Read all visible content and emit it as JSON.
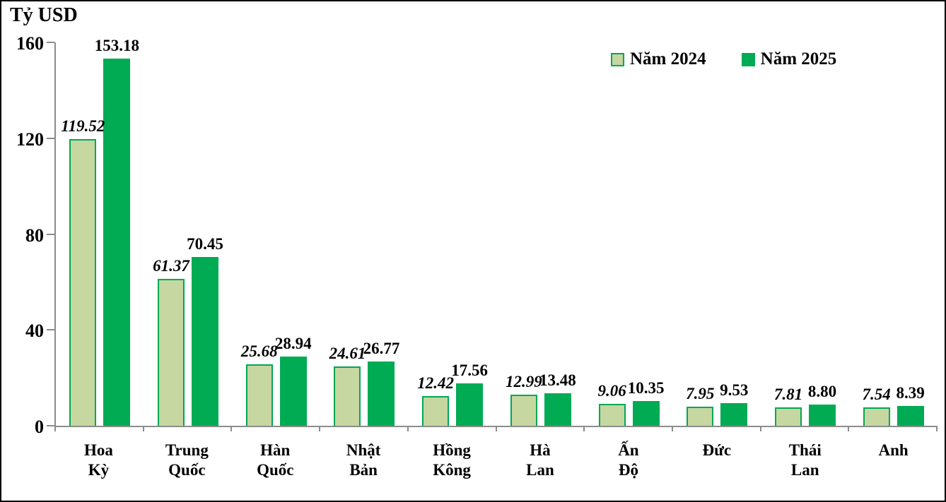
{
  "colors": {
    "axis": "#8c8c8c",
    "frame_border": "#000000",
    "background": "#ffffff",
    "text": "#000000",
    "series_2024_fill": "#c6d7a2",
    "series_2024_border": "#00a854",
    "series_2025_fill": "#00ab54"
  },
  "chart_data": {
    "type": "bar",
    "title": "",
    "ylabel": "Tỷ USD",
    "xlabel": "",
    "ylim": [
      0,
      160
    ],
    "yticks": [
      0,
      40,
      80,
      120,
      160
    ],
    "grid": false,
    "legend_position": "top-right",
    "value_format": "0.00",
    "value_label_styles": {
      "Năm 2024": "bold-italic",
      "Năm 2025": "bold"
    },
    "categories": [
      "Hoa\nKỳ",
      "Trung\nQuốc",
      "Hàn\nQuốc",
      "Nhật\nBản",
      "Hồng\nKông",
      "Hà\nLan",
      "Ấn\nĐộ",
      "Đức",
      "Thái\nLan",
      "Anh"
    ],
    "series": [
      {
        "name": "Năm 2024",
        "fill": "#c6d7a2",
        "border": "#00a854",
        "values": [
          119.52,
          61.37,
          25.68,
          24.61,
          12.42,
          12.99,
          9.06,
          7.95,
          7.81,
          7.54
        ]
      },
      {
        "name": "Năm 2025",
        "fill": "#00ab54",
        "border": "#00ab54",
        "values": [
          153.18,
          70.45,
          28.94,
          26.77,
          17.56,
          13.48,
          10.35,
          9.53,
          8.8,
          8.39
        ]
      }
    ]
  }
}
